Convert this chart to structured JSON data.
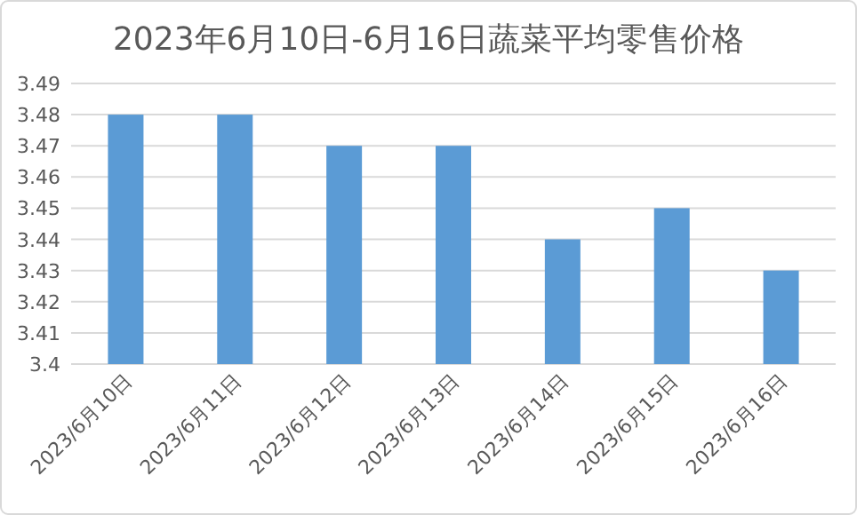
{
  "chart_data": {
    "type": "bar",
    "title": "2023年6月10日-6月16日蔬菜平均零售价格",
    "categories": [
      "2023/6月10日",
      "2023/6月11日",
      "2023/6月12日",
      "2023/6月13日",
      "2023/6月14日",
      "2023/6月15日",
      "2023/6月16日"
    ],
    "values": [
      3.48,
      3.48,
      3.47,
      3.47,
      3.44,
      3.45,
      3.43
    ],
    "color": "#5b9bd5",
    "ylim": [
      3.4,
      3.49
    ],
    "yticks": [
      3.4,
      3.41,
      3.42,
      3.43,
      3.44,
      3.45,
      3.46,
      3.47,
      3.48,
      3.49
    ],
    "grid": "y"
  }
}
